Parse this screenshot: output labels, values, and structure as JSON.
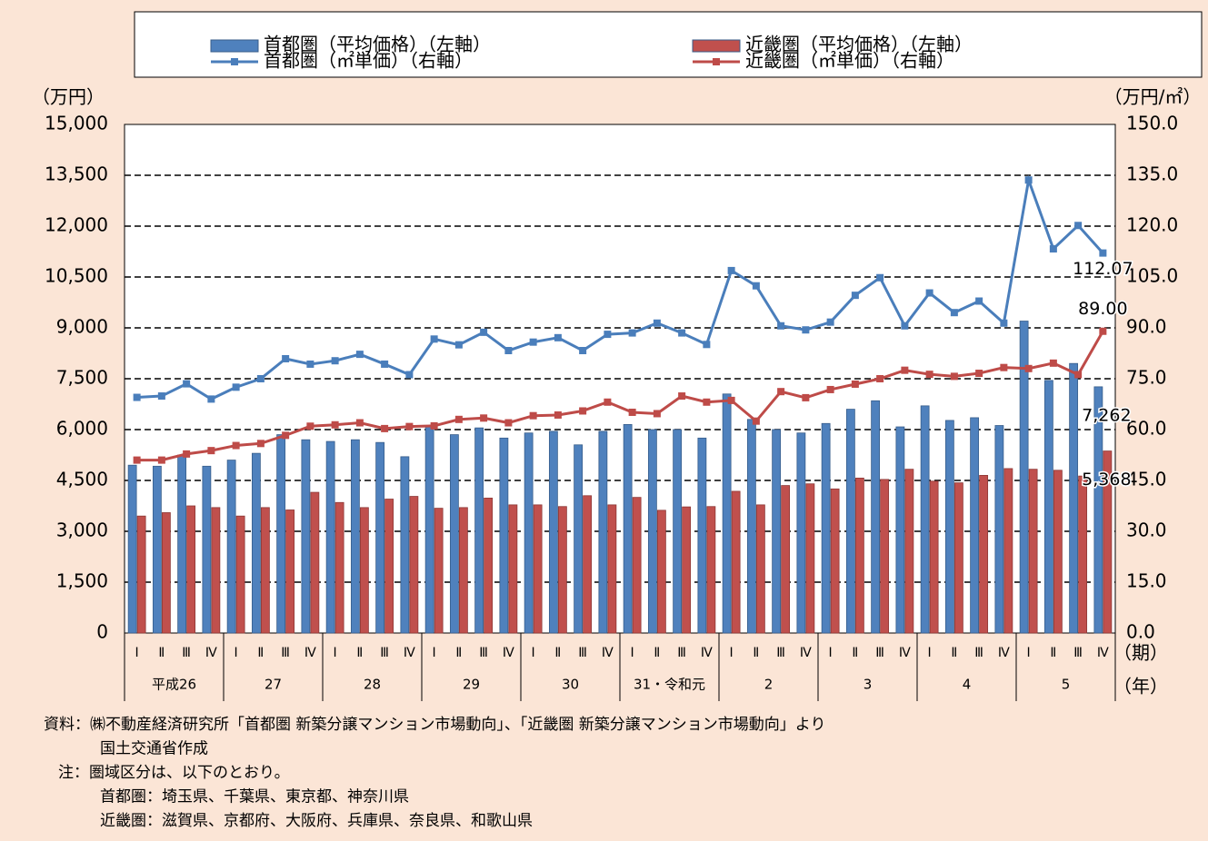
{
  "chart_data": {
    "type": "bar_line",
    "y_label": "（万円）",
    "y2_label": "（万円/㎡）",
    "x_label": "（期）",
    "group_label": "（年）",
    "categories": [
      "Ⅰ",
      "Ⅱ",
      "Ⅲ",
      "Ⅳ",
      "Ⅰ",
      "Ⅱ",
      "Ⅲ",
      "Ⅳ",
      "Ⅰ",
      "Ⅱ",
      "Ⅲ",
      "Ⅳ",
      "Ⅰ",
      "Ⅱ",
      "Ⅲ",
      "Ⅳ",
      "Ⅰ",
      "Ⅱ",
      "Ⅲ",
      "Ⅳ",
      "Ⅰ",
      "Ⅱ",
      "Ⅲ",
      "Ⅳ",
      "Ⅰ",
      "Ⅱ",
      "Ⅲ",
      "Ⅳ",
      "Ⅰ",
      "Ⅱ",
      "Ⅲ",
      "Ⅳ",
      "Ⅰ",
      "Ⅱ",
      "Ⅲ",
      "Ⅳ",
      "Ⅰ",
      "Ⅱ",
      "Ⅲ",
      "Ⅳ"
    ],
    "groups": [
      "平成26",
      "27",
      "28",
      "29",
      "30",
      "31・令和元",
      "2",
      "3",
      "4",
      "5"
    ],
    "series": [
      {
        "name": "首都圏（平均価格）（左軸）",
        "type": "bar",
        "color": "#4f81bd",
        "axis": "y",
        "values": [
          4950,
          4920,
          5250,
          4920,
          5100,
          5300,
          5850,
          5700,
          5650,
          5700,
          5620,
          5200,
          6100,
          5850,
          6050,
          5750,
          5900,
          5950,
          5550,
          5950,
          6150,
          6000,
          6000,
          5750,
          7050,
          6300,
          6000,
          5900,
          6180,
          6600,
          6850,
          6080,
          6700,
          6270,
          6350,
          6120,
          9200,
          7450,
          7950,
          7262
        ],
        "value_labels": [
          null,
          null,
          null,
          null,
          null,
          null,
          null,
          null,
          null,
          null,
          null,
          null,
          null,
          null,
          null,
          null,
          null,
          null,
          null,
          null,
          null,
          null,
          null,
          null,
          null,
          null,
          null,
          null,
          null,
          null,
          null,
          null,
          null,
          null,
          null,
          null,
          null,
          null,
          null,
          "7,262"
        ]
      },
      {
        "name": "近畿圏（平均価格）（左軸）",
        "type": "bar",
        "color": "#c0504d",
        "axis": "y",
        "values": [
          3450,
          3550,
          3750,
          3700,
          3450,
          3700,
          3630,
          4150,
          3850,
          3700,
          3950,
          4030,
          3680,
          3700,
          3980,
          3780,
          3780,
          3730,
          4050,
          3780,
          4000,
          3620,
          3720,
          3730,
          4180,
          3780,
          4350,
          4400,
          4250,
          4570,
          4530,
          4830,
          4480,
          4430,
          4650,
          4850,
          4830,
          4800,
          4630,
          5368
        ],
        "value_labels": [
          null,
          null,
          null,
          null,
          null,
          null,
          null,
          null,
          null,
          null,
          null,
          null,
          null,
          null,
          null,
          null,
          null,
          null,
          null,
          null,
          null,
          null,
          null,
          null,
          null,
          null,
          null,
          null,
          null,
          null,
          null,
          null,
          null,
          null,
          null,
          null,
          null,
          null,
          null,
          "5,368"
        ]
      },
      {
        "name": "首都圏（㎡単価）（右軸）",
        "type": "line",
        "color": "#4a7ebb",
        "axis": "y2",
        "values": [
          69.5,
          69.9,
          73.5,
          69.0,
          72.5,
          75.0,
          80.9,
          79.3,
          80.3,
          82.2,
          79.3,
          76.2,
          86.7,
          85.0,
          88.7,
          83.3,
          85.8,
          87.1,
          83.3,
          88.1,
          88.5,
          91.4,
          88.5,
          85.1,
          106.9,
          102.4,
          90.6,
          89.4,
          91.7,
          99.6,
          104.8,
          90.6,
          100.3,
          94.5,
          97.9,
          91.4,
          133.6,
          113.3,
          120.2,
          112.07
        ],
        "value_labels": [
          null,
          null,
          null,
          null,
          null,
          null,
          null,
          null,
          null,
          null,
          null,
          null,
          null,
          null,
          null,
          null,
          null,
          null,
          null,
          null,
          null,
          null,
          null,
          null,
          null,
          null,
          null,
          null,
          null,
          null,
          null,
          null,
          null,
          null,
          null,
          null,
          null,
          null,
          null,
          "112.07"
        ]
      },
      {
        "name": "近畿圏（㎡単価）（右軸）",
        "type": "line",
        "color": "#be4b48",
        "axis": "y2",
        "values": [
          51.0,
          51.0,
          52.8,
          53.8,
          55.3,
          55.9,
          58.3,
          61.0,
          61.4,
          62.0,
          60.3,
          60.9,
          61.1,
          63.0,
          63.4,
          62.0,
          64.1,
          64.3,
          65.5,
          68.1,
          65.1,
          64.7,
          69.9,
          68.1,
          68.6,
          62.5,
          71.2,
          69.4,
          71.8,
          73.4,
          75.0,
          77.5,
          76.3,
          75.7,
          76.6,
          78.3,
          78.0,
          79.6,
          76.2,
          89.0
        ],
        "value_labels": [
          null,
          null,
          null,
          null,
          null,
          null,
          null,
          null,
          null,
          null,
          null,
          null,
          null,
          null,
          null,
          null,
          null,
          null,
          null,
          null,
          null,
          null,
          null,
          null,
          null,
          null,
          null,
          null,
          null,
          null,
          null,
          null,
          null,
          null,
          null,
          null,
          null,
          null,
          null,
          "89.00"
        ]
      }
    ],
    "ylim": [
      0,
      15000
    ],
    "yticks": [
      0,
      {
        "value": 1500,
        "label": "1,500"
      },
      {
        "value": 3000,
        "label": "3,000"
      },
      {
        "value": 4500,
        "label": "4,500"
      },
      {
        "value": 6000,
        "label": "6,000"
      },
      {
        "value": 7500,
        "label": "7,500"
      },
      {
        "value": 9000,
        "label": "9,000"
      },
      {
        "value": 10500,
        "label": "10,500"
      },
      {
        "value": 12000,
        "label": "12,000"
      },
      {
        "value": 13500,
        "label": "13,500"
      },
      {
        "value": 15000,
        "label": "15,000"
      }
    ],
    "y2lim": [
      0,
      150
    ],
    "y2ticks": [
      {
        "value": 0,
        "label": "0.0"
      },
      {
        "value": 15,
        "label": "15.0"
      },
      {
        "value": 30,
        "label": "30.0"
      },
      {
        "value": 45,
        "label": "45.0"
      },
      {
        "value": 60,
        "label": "60.0"
      },
      {
        "value": 75,
        "label": "75.0"
      },
      {
        "value": 90,
        "label": "90.0"
      },
      {
        "value": 105,
        "label": "105.0"
      },
      {
        "value": 120,
        "label": "120.0"
      },
      {
        "value": 135,
        "label": "135.0"
      },
      {
        "value": 150,
        "label": "150.0"
      }
    ],
    "grid": true,
    "notes": [
      "資料：㈱不動産経済研究所「首都圏 新築分譲マンション市場動向」、「近畿圏 新築分譲マンション市場動向」より",
      "国土交通省作成",
      "注：圏域区分は、以下のとおり。",
      "首都圏：埼玉県、千葉県、東京都、神奈川県",
      "近畿圏：滋賀県、京都府、大阪府、兵庫県、奈良県、和歌山県"
    ]
  }
}
